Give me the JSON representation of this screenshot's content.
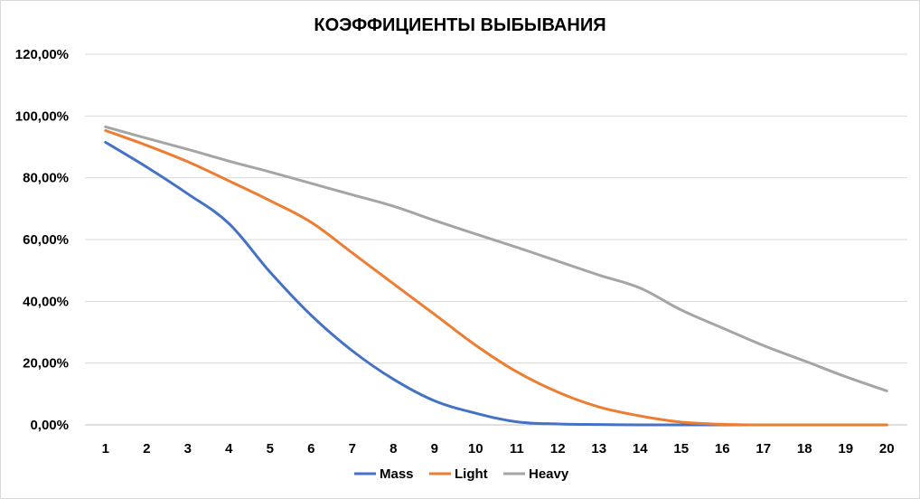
{
  "chart_data": {
    "type": "line",
    "title": "КОЭФФИЦИЕНТЫ ВЫБЫВАНИЯ",
    "xlabel": "",
    "ylabel": "",
    "x": [
      1,
      2,
      3,
      4,
      5,
      6,
      7,
      8,
      9,
      10,
      11,
      12,
      13,
      14,
      15,
      16,
      17,
      18,
      19,
      20
    ],
    "ylim": [
      0,
      1.2
    ],
    "yticks": [
      0,
      0.2,
      0.4,
      0.6,
      0.8,
      1.0,
      1.2
    ],
    "ytick_labels": [
      "0,00%",
      "20,00%",
      "40,00%",
      "60,00%",
      "80,00%",
      "100,00%",
      "120,00%"
    ],
    "grid": "horizontal",
    "legend_position": "bottom",
    "series": [
      {
        "name": "Mass",
        "color": "#4472c4",
        "values": [
          0.915,
          0.835,
          0.748,
          0.652,
          0.495,
          0.355,
          0.24,
          0.148,
          0.078,
          0.038,
          0.01,
          0.003,
          0.001,
          0.0,
          0.0,
          0.0,
          0.0,
          0.0,
          0.0,
          0.0
        ]
      },
      {
        "name": "Light",
        "color": "#ed7d31",
        "values": [
          0.953,
          0.905,
          0.852,
          0.79,
          0.726,
          0.656,
          0.557,
          0.457,
          0.358,
          0.258,
          0.172,
          0.106,
          0.058,
          0.029,
          0.009,
          0.002,
          0.0,
          0.0,
          0.0,
          0.0
        ]
      },
      {
        "name": "Heavy",
        "color": "#a5a5a5",
        "values": [
          0.965,
          0.928,
          0.892,
          0.854,
          0.819,
          0.782,
          0.745,
          0.708,
          0.662,
          0.618,
          0.575,
          0.53,
          0.485,
          0.443,
          0.372,
          0.314,
          0.257,
          0.207,
          0.156,
          0.11
        ]
      }
    ]
  },
  "colors": {
    "gridline": "#d9d9d9",
    "axis": "#bfbfbf",
    "frame": "#d9d9d9"
  }
}
